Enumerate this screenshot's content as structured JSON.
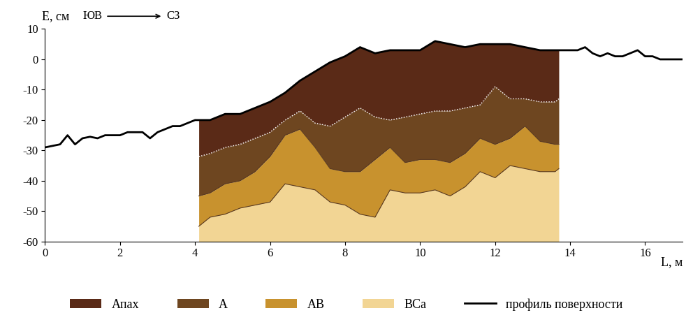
{
  "chart_data": {
    "type": "area",
    "x_label": "L, м",
    "y_label": "E, см",
    "direction": {
      "from": "ЮВ",
      "to": "СЗ"
    },
    "xlim": [
      0,
      17
    ],
    "xticks": [
      0,
      2,
      4,
      6,
      8,
      10,
      12,
      14,
      16
    ],
    "ylim": [
      -60,
      10
    ],
    "yticks": [
      -60,
      -50,
      -40,
      -30,
      -20,
      -10,
      0,
      10
    ],
    "legend": "bottom",
    "surface": {
      "name": "профиль поверхности",
      "color": "#000000",
      "line_style": "solid",
      "x": [
        0,
        0.2,
        0.4,
        0.6,
        0.8,
        1.0,
        1.2,
        1.4,
        1.6,
        1.8,
        2.0,
        2.2,
        2.4,
        2.6,
        2.8,
        3.0,
        3.2,
        3.4,
        3.6,
        3.8,
        4.0,
        4.1,
        4.4,
        4.8,
        5.2,
        5.6,
        6.0,
        6.4,
        6.8,
        7.2,
        7.6,
        8.0,
        8.4,
        8.8,
        9.2,
        9.6,
        10.0,
        10.4,
        10.8,
        11.2,
        11.6,
        12.0,
        12.4,
        12.8,
        13.2,
        13.6,
        13.7,
        13.8,
        14.0,
        14.2,
        14.4,
        14.6,
        14.8,
        15.0,
        15.2,
        15.4,
        15.6,
        15.8,
        16.0,
        16.2,
        16.4,
        16.6,
        16.8,
        17.0
      ],
      "values": [
        -29,
        -28.5,
        -28,
        -25,
        -28,
        -26,
        -25.5,
        -26,
        -25,
        -25,
        -25,
        -24,
        -24,
        -24,
        -26,
        -24,
        -23,
        -22,
        -22,
        -21,
        -20,
        -20,
        -20,
        -18,
        -18,
        -16,
        -14,
        -11,
        -7,
        -4,
        -1,
        1,
        4,
        2,
        3,
        3,
        3,
        6,
        5,
        4,
        5,
        5,
        5,
        4,
        3,
        3,
        3,
        3,
        3,
        3,
        4,
        2,
        1,
        2,
        1,
        1,
        2,
        3,
        1,
        1,
        0,
        0,
        0,
        0
      ]
    },
    "x": [
      4.1,
      4.4,
      4.8,
      5.2,
      5.6,
      6.0,
      6.4,
      6.8,
      7.2,
      7.6,
      8.0,
      8.4,
      8.8,
      9.2,
      9.6,
      10.0,
      10.4,
      10.8,
      11.2,
      11.6,
      12.0,
      12.4,
      12.8,
      13.2,
      13.6,
      13.7
    ],
    "series": [
      {
        "name": "Апах",
        "color": "#5a2a17",
        "values": [
          -32,
          -31,
          -29,
          -28,
          -26,
          -24,
          -20,
          -17,
          -21,
          -22,
          -19,
          -16,
          -19,
          -20,
          -19,
          -18,
          -17,
          -17,
          -16,
          -15,
          -9,
          -13,
          -13,
          -14,
          -14,
          -13
        ]
      },
      {
        "name": "А",
        "color": "#6e4620",
        "values": [
          -45,
          -44,
          -41,
          -40,
          -37,
          -32,
          -25,
          -23,
          -29,
          -36,
          -37,
          -37,
          -33,
          -29,
          -34,
          -33,
          -33,
          -34,
          -31,
          -26,
          -28,
          -26,
          -22,
          -27,
          -28,
          -28
        ]
      },
      {
        "name": "АВ",
        "color": "#c8922e",
        "values": [
          -55,
          -52,
          -51,
          -49,
          -48,
          -47,
          -41,
          -42,
          -43,
          -47,
          -48,
          -51,
          -52,
          -43,
          -44,
          -44,
          -43,
          -45,
          -42,
          -37,
          -39,
          -35,
          -36,
          -37,
          -37,
          -36
        ]
      },
      {
        "name": "BCa",
        "color": "#f2d594",
        "values": [
          -60,
          -60,
          -60,
          -60,
          -60,
          -60,
          -60,
          -60,
          -60,
          -60,
          -60,
          -60,
          -60,
          -60,
          -60,
          -60,
          -60,
          -60,
          -60,
          -60,
          -60,
          -60,
          -60,
          -60,
          -60,
          -60
        ]
      }
    ]
  }
}
